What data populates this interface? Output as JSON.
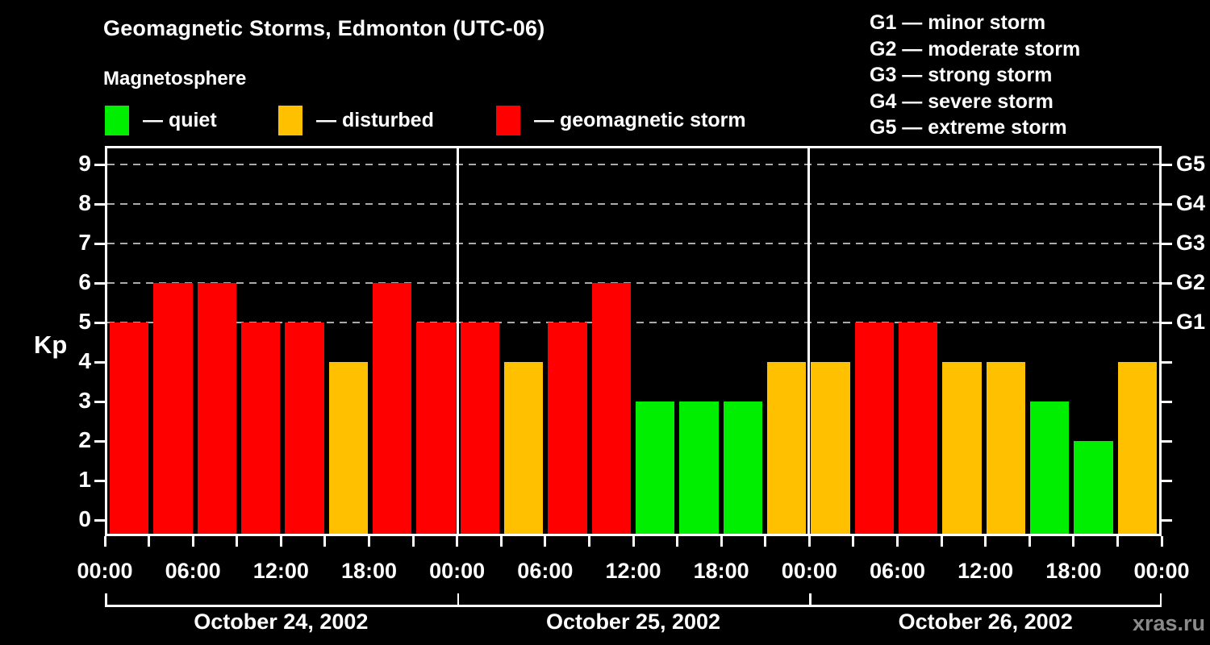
{
  "header": {
    "title": "Geomagnetic Storms, Edmonton (UTC-06)",
    "subtitle": "Magnetosphere"
  },
  "legend": {
    "items": [
      {
        "name": "quiet",
        "label": "— quiet",
        "color": "#00EE00"
      },
      {
        "name": "disturbed",
        "label": "— disturbed",
        "color": "#FFC000"
      },
      {
        "name": "storm",
        "label": "— geomagnetic storm",
        "color": "#FF0000"
      }
    ]
  },
  "g_scale_legend": {
    "items": [
      {
        "label": "G1 — minor storm"
      },
      {
        "label": "G2 — moderate storm"
      },
      {
        "label": "G3 — strong storm"
      },
      {
        "label": "G4 — severe storm"
      },
      {
        "label": "G5 — extreme storm"
      }
    ]
  },
  "watermark": "xras.ru",
  "chart_data": {
    "type": "bar",
    "title": "Geomagnetic Storms, Edmonton (UTC-06)",
    "ylabel": "Kp",
    "ylim": [
      0,
      9.5
    ],
    "yticks": [
      0,
      1,
      2,
      3,
      4,
      5,
      6,
      7,
      8,
      9
    ],
    "gridline_levels": [
      5,
      6,
      7,
      8,
      9
    ],
    "grid": "dashed horizontal lines at Kp 5-9 only",
    "right_axis_labels": [
      {
        "kp": 5,
        "label": "G1"
      },
      {
        "kp": 6,
        "label": "G2"
      },
      {
        "kp": 7,
        "label": "G3"
      },
      {
        "kp": 8,
        "label": "G4"
      },
      {
        "kp": 9,
        "label": "G5"
      }
    ],
    "x_tick_labels": [
      "00:00",
      "06:00",
      "12:00",
      "18:00",
      "00:00",
      "06:00",
      "12:00",
      "18:00",
      "00:00",
      "06:00",
      "12:00",
      "18:00",
      "00:00"
    ],
    "hours_per_bar": 3,
    "bars_per_day": 8,
    "status_colors": {
      "quiet": "#00EE00",
      "disturbed": "#FFC000",
      "storm": "#FF0000"
    },
    "days": [
      {
        "date": "October 24, 2002",
        "values": [
          5,
          6,
          6,
          5,
          5,
          4,
          6,
          5
        ],
        "status": [
          "storm",
          "storm",
          "storm",
          "storm",
          "storm",
          "disturbed",
          "storm",
          "storm"
        ]
      },
      {
        "date": "October 25, 2002",
        "values": [
          5,
          4,
          5,
          6,
          3,
          3,
          3,
          4
        ],
        "status": [
          "storm",
          "disturbed",
          "storm",
          "storm",
          "quiet",
          "quiet",
          "quiet",
          "disturbed"
        ]
      },
      {
        "date": "October 26, 2002",
        "values": [
          4,
          5,
          5,
          4,
          4,
          3,
          2,
          4
        ],
        "status": [
          "disturbed",
          "storm",
          "storm",
          "disturbed",
          "disturbed",
          "quiet",
          "quiet",
          "disturbed"
        ]
      }
    ]
  }
}
